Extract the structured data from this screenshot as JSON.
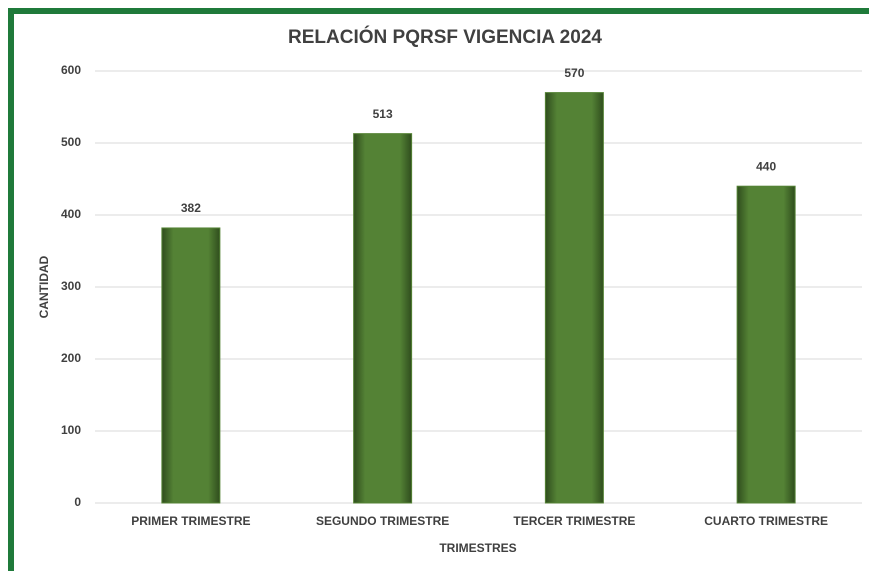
{
  "chart_data": {
    "type": "bar",
    "title": "RELACIÓN PQRSF VIGENCIA 2024",
    "x_label": "TRIMESTRES",
    "y_label": "CANTIDAD",
    "categories": [
      "PRIMER TRIMESTRE",
      "SEGUNDO TRIMESTRE",
      "TERCER TRIMESTRE",
      "CUARTO TRIMESTRE"
    ],
    "values": [
      382,
      513,
      570,
      440
    ],
    "color": "#548235",
    "ylim": [
      0,
      600
    ],
    "yticks": [
      0,
      100,
      200,
      300,
      400,
      500,
      600
    ],
    "grid": true
  }
}
